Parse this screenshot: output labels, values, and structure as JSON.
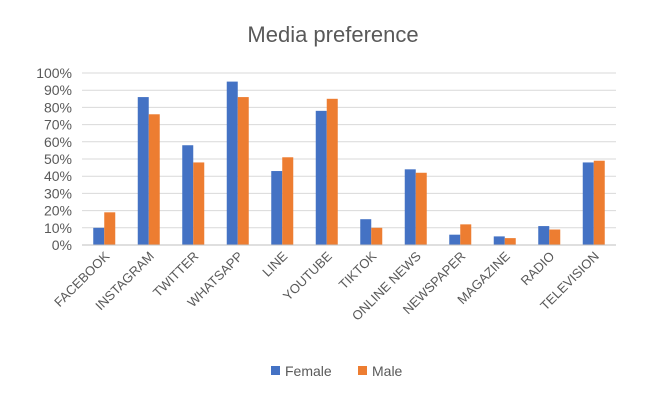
{
  "chart_data": {
    "type": "bar",
    "title": "Media preference",
    "xlabel": "",
    "ylabel": "",
    "ylim": [
      0,
      100
    ],
    "y_ticks": [
      "0%",
      "10%",
      "20%",
      "30%",
      "40%",
      "50%",
      "60%",
      "70%",
      "80%",
      "90%",
      "100%"
    ],
    "grid": true,
    "legend_position": "bottom",
    "categories": [
      "FACEBOOK",
      "INSTAGRAM",
      "TWITTER",
      "WHATSAPP",
      "LINE",
      "YOUTUBE",
      "TIKTOK",
      "ONLINE NEWS",
      "NEWSPAPER",
      "MAGAZINE",
      "RADIO",
      "TELEVISION"
    ],
    "series": [
      {
        "name": "Female",
        "color": "#4472c4",
        "values": [
          10,
          86,
          58,
          95,
          43,
          78,
          15,
          44,
          6,
          5,
          11,
          48
        ]
      },
      {
        "name": "Male",
        "color": "#ed7d31",
        "values": [
          19,
          76,
          48,
          86,
          51,
          85,
          10,
          42,
          12,
          4,
          9,
          49
        ]
      }
    ]
  }
}
